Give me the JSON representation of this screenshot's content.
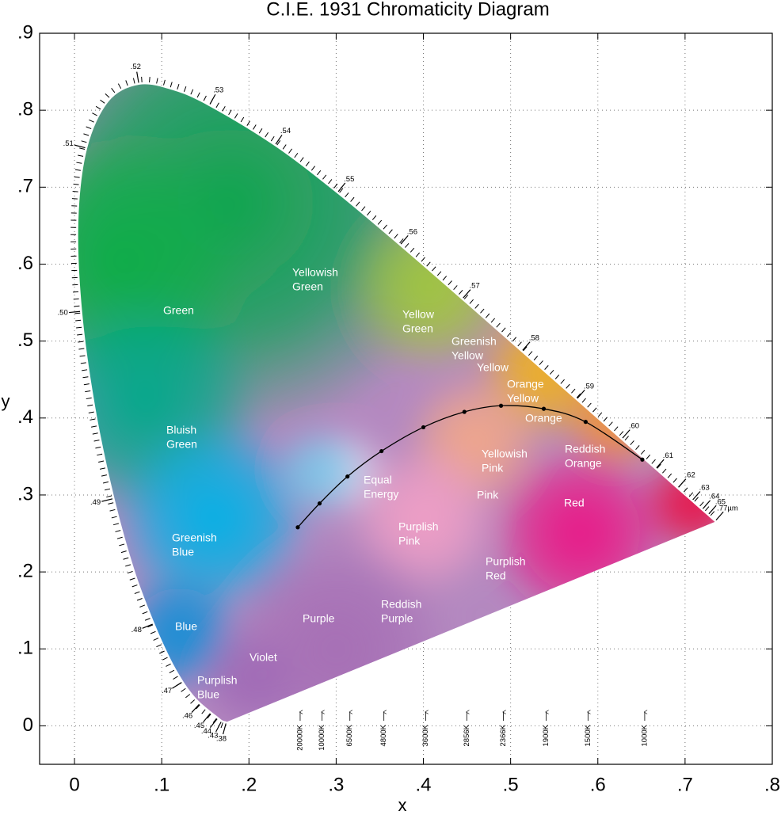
{
  "chart_data": {
    "type": "chromaticity",
    "title": "C.I.E. 1931 Chromaticity Diagram",
    "xlabel": "x",
    "ylabel": "y",
    "xlim": [
      -0.04,
      0.8
    ],
    "ylim": [
      -0.05,
      0.9
    ],
    "grid": true,
    "xticks": [
      0,
      {
        "value": 0.1,
        "label": ".1"
      },
      {
        "value": 0.2,
        "label": ".2"
      },
      {
        "value": 0.3,
        "label": ".3"
      },
      {
        "value": 0.4,
        "label": ".4"
      },
      {
        "value": 0.5,
        "label": ".5"
      },
      {
        "value": 0.6,
        "label": ".6"
      },
      {
        "value": 0.7,
        "label": ".7"
      },
      {
        "value": 0.8,
        "label": ".8"
      }
    ],
    "yticks": [
      0,
      {
        "value": 0.1,
        "label": ".1"
      },
      {
        "value": 0.2,
        "label": ".2"
      },
      {
        "value": 0.3,
        "label": ".3"
      },
      {
        "value": 0.4,
        "label": ".4"
      },
      {
        "value": 0.5,
        "label": ".5"
      },
      {
        "value": 0.6,
        "label": ".6"
      },
      {
        "value": 0.7,
        "label": ".7"
      },
      {
        "value": 0.8,
        "label": ".8"
      },
      {
        "value": 0.9,
        "label": ".9"
      }
    ],
    "spectral_locus": {
      "x": [
        0.1741,
        0.1689,
        0.1644,
        0.1566,
        0.144,
        0.1355,
        0.1241,
        0.1096,
        0.0913,
        0.0687,
        0.0454,
        0.0235,
        0.0082,
        0.0039,
        0.0139,
        0.0389,
        0.0743,
        0.1142,
        0.1547,
        0.2296,
        0.3016,
        0.3731,
        0.4441,
        0.5125,
        0.5752,
        0.627,
        0.6658,
        0.6915,
        0.7079,
        0.719,
        0.726,
        0.7347
      ],
      "y": [
        0.005,
        0.0069,
        0.0109,
        0.0177,
        0.0297,
        0.0399,
        0.0578,
        0.0868,
        0.1327,
        0.2007,
        0.295,
        0.4127,
        0.5384,
        0.6548,
        0.7502,
        0.812,
        0.8338,
        0.8262,
        0.8059,
        0.7543,
        0.6923,
        0.6245,
        0.5547,
        0.4866,
        0.4242,
        0.3725,
        0.334,
        0.3083,
        0.292,
        0.2809,
        0.274,
        0.2653
      ],
      "labels": [
        ".38",
        ".43",
        ".44",
        ".45",
        ".46",
        null,
        ".47",
        null,
        ".48",
        null,
        ".49",
        null,
        ".50",
        null,
        ".51",
        null,
        ".52",
        null,
        ".53",
        ".54",
        ".55",
        ".56",
        ".57",
        ".58",
        ".59",
        ".60",
        ".61",
        ".62",
        ".63",
        ".64",
        ".65",
        ".77µm"
      ]
    },
    "planckian_locus": {
      "x": [
        0.256,
        0.281,
        0.313,
        0.352,
        0.4,
        0.447,
        0.489,
        0.538,
        0.586,
        0.651
      ],
      "y": [
        0.258,
        0.289,
        0.324,
        0.357,
        0.388,
        0.408,
        0.416,
        0.412,
        0.395,
        0.346
      ],
      "labels": [
        "20000K",
        "10000K",
        "6500K",
        "4800K",
        "3600K",
        "2856K",
        "2366K",
        "1900K",
        "1500K",
        "1000K"
      ]
    },
    "regions": [
      [
        "Yellowish",
        "Green"
      ],
      [
        "Green"
      ],
      [
        "Yellow",
        "Green"
      ],
      [
        "Greenish",
        "Yellow"
      ],
      [
        "Yellow"
      ],
      [
        "Orange",
        "Yellow"
      ],
      [
        "Orange"
      ],
      [
        "Bluish",
        "Green"
      ],
      [
        "Yellowish",
        "Pink"
      ],
      [
        "Reddish",
        "Orange"
      ],
      [
        "Equal",
        "Energy"
      ],
      [
        "Pink"
      ],
      [
        "Red"
      ],
      [
        "Purplish",
        "Pink"
      ],
      [
        "Greenish",
        "Blue"
      ],
      [
        "Purplish",
        "Red"
      ],
      [
        "Reddish",
        "Purple"
      ],
      [
        "Purple"
      ],
      [
        "Blue"
      ],
      [
        "Violet"
      ],
      [
        "Purplish",
        "Blue"
      ]
    ]
  }
}
